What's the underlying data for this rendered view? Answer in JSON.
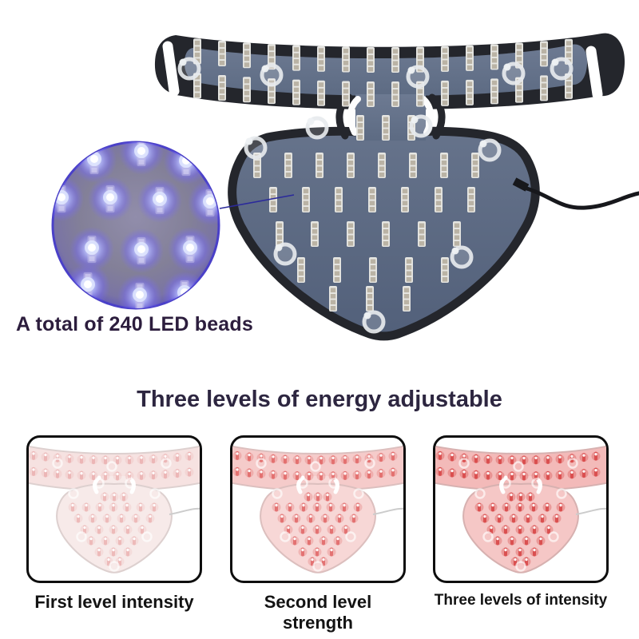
{
  "annotation": {
    "led_total_label": "A total of 240 LED beads"
  },
  "heading": {
    "title": "Three levels of energy adjustable"
  },
  "levels": [
    {
      "caption": "First level intensity",
      "body": "#f7eae9",
      "body_bar": "#f6e2e1",
      "edge": "#ddd0cf",
      "led": "#e59898",
      "led_opacity": 0.5,
      "glow_opacity": 0.16
    },
    {
      "caption": "Second level strength",
      "body": "#f7d7d6",
      "body_bar": "#f5cbca",
      "edge": "#dcbfbe",
      "led": "#e06262",
      "led_opacity": 0.8,
      "glow_opacity": 0.28
    },
    {
      "caption": "Three levels of intensity",
      "body": "#f5c7c6",
      "body_bar": "#f3bab9",
      "edge": "#d7b1b0",
      "led": "#d94c4c",
      "led_opacity": 0.95,
      "glow_opacity": 0.36
    }
  ],
  "colors": {
    "background": "#ffffff",
    "label_text": "#2c1d3d",
    "heading_text": "#2d2640",
    "caption_text": "#131313",
    "device_frame": "#24262c",
    "device_panel": "#5d6b83",
    "device_panel_dark": "#52607a",
    "led_strip": "#e6e6e2",
    "led_bead": "#b5ad9e",
    "eyelet": "#e8ebee",
    "inset_rim": "#4a40c8",
    "inset_bg": "#838098",
    "inset_glow": "#786cf0",
    "callout_line": "#2b2a9b",
    "cable": "#17181c"
  }
}
